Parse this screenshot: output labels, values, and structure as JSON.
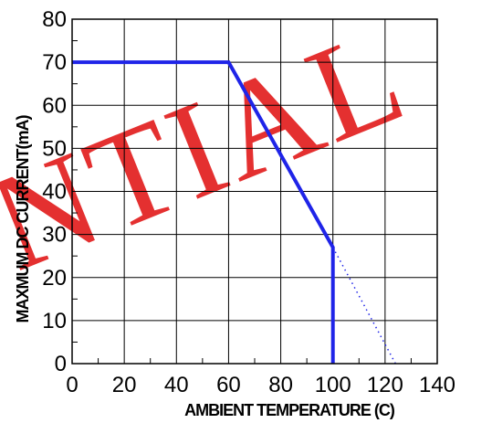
{
  "watermark": "NTIAL",
  "chart_data": {
    "type": "line",
    "title": "",
    "xlabel": "AMBIENT TEMPERATURE (C)",
    "ylabel": "MAXMUM DC CURRENT(mA)",
    "xlim": [
      0,
      140
    ],
    "ylim": [
      0,
      80
    ],
    "x_ticks": [
      0,
      20,
      40,
      60,
      80,
      100,
      120,
      140
    ],
    "y_ticks": [
      0,
      10,
      20,
      30,
      40,
      50,
      60,
      70,
      80
    ],
    "x_tick_labels": [
      "0",
      "20",
      "40",
      "60",
      "80",
      "100",
      "120",
      "140"
    ],
    "y_tick_labels": [
      "0",
      "10",
      "20",
      "30",
      "40",
      "50",
      "60",
      "70",
      "80"
    ],
    "grid": true,
    "series": [
      {
        "style": "solid",
        "color": "#1f24e8",
        "points": [
          [
            0,
            70
          ],
          [
            60,
            70
          ],
          [
            100,
            27
          ],
          [
            100,
            0
          ]
        ]
      },
      {
        "style": "dotted",
        "color": "#1f24e8",
        "points": [
          [
            100,
            27
          ],
          [
            124,
            0
          ]
        ]
      }
    ]
  }
}
